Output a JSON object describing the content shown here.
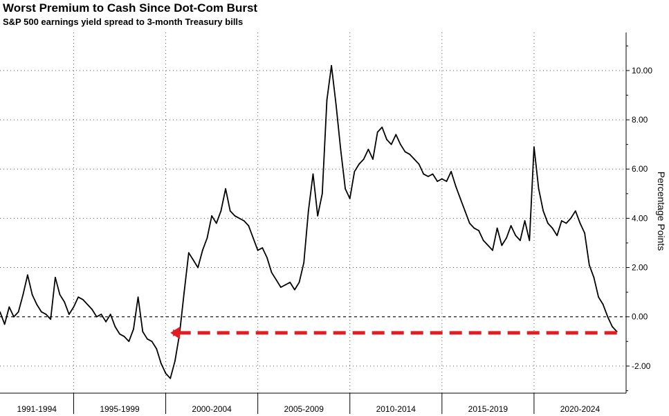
{
  "chart_data": {
    "type": "line",
    "title": "Worst Premium to Cash Since Dot-Com Burst",
    "subtitle": "S&P 500 earnings yield spread to 3-month Treasury bills",
    "xlabel": "",
    "ylabel": "Percentage Points",
    "xlim": [
      1991.0,
      2025.0
    ],
    "ylim": [
      -3.1,
      11.6
    ],
    "y_ticks": [
      10,
      8,
      6,
      4,
      2,
      0,
      -2
    ],
    "y_tick_labels": [
      "10.00",
      "8.00",
      "6.00",
      "4.00",
      "2.00",
      "0.00",
      "-2.00"
    ],
    "x_categories": [
      "1991-1994",
      "1995-1999",
      "2000-2004",
      "2005-2009",
      "2010-2014",
      "2015-2019",
      "2020-2024"
    ],
    "x_category_bounds": [
      [
        1991.0,
        1995.0
      ],
      [
        1995.0,
        2000.0
      ],
      [
        2000.0,
        2005.0
      ],
      [
        2005.0,
        2010.0
      ],
      [
        2010.0,
        2015.0
      ],
      [
        2015.0,
        2020.0
      ],
      [
        2020.0,
        2025.0
      ]
    ],
    "grid": true,
    "legend": "none",
    "line_color": "#000000",
    "series": [
      {
        "x": [
          1991.0,
          1991.25,
          1991.5,
          1991.75,
          1992.0,
          1992.25,
          1992.5,
          1992.75,
          1993.0,
          1993.25,
          1993.5,
          1993.75,
          1994.0,
          1994.25,
          1994.5,
          1994.75,
          1995.0,
          1995.25,
          1995.5,
          1995.75,
          1996.0,
          1996.25,
          1996.5,
          1996.75,
          1997.0,
          1997.25,
          1997.5,
          1997.75,
          1998.0,
          1998.25,
          1998.5,
          1998.75,
          1999.0,
          1999.25,
          1999.5,
          1999.75,
          2000.0,
          2000.25,
          2000.5,
          2000.75,
          2001.0,
          2001.25,
          2001.5,
          2001.75,
          2002.0,
          2002.25,
          2002.5,
          2002.75,
          2003.0,
          2003.25,
          2003.5,
          2003.75,
          2004.0,
          2004.25,
          2004.5,
          2004.75,
          2005.0,
          2005.25,
          2005.5,
          2005.75,
          2006.0,
          2006.25,
          2006.5,
          2006.75,
          2007.0,
          2007.25,
          2007.5,
          2007.75,
          2008.0,
          2008.25,
          2008.5,
          2008.75,
          2009.0,
          2009.25,
          2009.5,
          2009.75,
          2010.0,
          2010.25,
          2010.5,
          2010.75,
          2011.0,
          2011.25,
          2011.5,
          2011.75,
          2012.0,
          2012.25,
          2012.5,
          2012.75,
          2013.0,
          2013.25,
          2013.5,
          2013.75,
          2014.0,
          2014.25,
          2014.5,
          2014.75,
          2015.0,
          2015.25,
          2015.5,
          2015.75,
          2016.0,
          2016.25,
          2016.5,
          2016.75,
          2017.0,
          2017.25,
          2017.5,
          2017.75,
          2018.0,
          2018.25,
          2018.5,
          2018.75,
          2019.0,
          2019.25,
          2019.5,
          2019.75,
          2020.0,
          2020.25,
          2020.5,
          2020.75,
          2021.0,
          2021.25,
          2021.5,
          2021.75,
          2022.0,
          2022.25,
          2022.5,
          2022.75,
          2023.0,
          2023.25,
          2023.5,
          2023.75,
          2024.0,
          2024.25,
          2024.5
        ],
        "y": [
          0.2,
          -0.3,
          0.4,
          0.0,
          0.2,
          0.9,
          1.7,
          0.9,
          0.5,
          0.2,
          0.1,
          -0.1,
          1.6,
          0.9,
          0.6,
          0.1,
          0.4,
          0.8,
          0.7,
          0.5,
          0.3,
          0.0,
          0.1,
          -0.2,
          0.1,
          -0.4,
          -0.7,
          -0.8,
          -1.0,
          -0.5,
          0.8,
          -0.6,
          -0.9,
          -1.0,
          -1.3,
          -1.9,
          -2.3,
          -2.5,
          -1.8,
          -0.7,
          1.0,
          2.6,
          2.3,
          2.0,
          2.7,
          3.2,
          4.1,
          3.8,
          4.3,
          5.2,
          4.3,
          4.1,
          4.0,
          3.9,
          3.7,
          3.2,
          2.7,
          2.8,
          2.4,
          1.8,
          1.5,
          1.2,
          1.3,
          1.4,
          1.1,
          1.4,
          2.2,
          4.3,
          5.8,
          4.1,
          5.0,
          8.8,
          10.2,
          8.6,
          6.8,
          5.2,
          4.8,
          5.9,
          6.2,
          6.4,
          6.8,
          6.4,
          7.5,
          7.7,
          7.2,
          7.0,
          7.4,
          7.0,
          6.7,
          6.6,
          6.4,
          6.2,
          5.8,
          5.7,
          5.8,
          5.5,
          5.6,
          5.5,
          5.9,
          5.3,
          4.8,
          4.3,
          3.8,
          3.6,
          3.5,
          3.1,
          2.9,
          2.7,
          3.6,
          2.9,
          3.2,
          3.7,
          3.3,
          3.1,
          3.9,
          3.1,
          6.9,
          5.2,
          4.3,
          3.8,
          3.6,
          3.3,
          3.9,
          3.8,
          4.0,
          4.3,
          3.8,
          3.4,
          2.1,
          1.6,
          0.8,
          0.5,
          0.0,
          -0.4,
          -0.6
        ]
      }
    ],
    "annotation": {
      "type": "dashed-arrow",
      "color": "#e31b23",
      "y": -0.65,
      "x_start": 2024.5,
      "x_end": 2000.25
    },
    "zero_line": {
      "y": 0,
      "style": "dashed",
      "color": "#000000"
    }
  }
}
